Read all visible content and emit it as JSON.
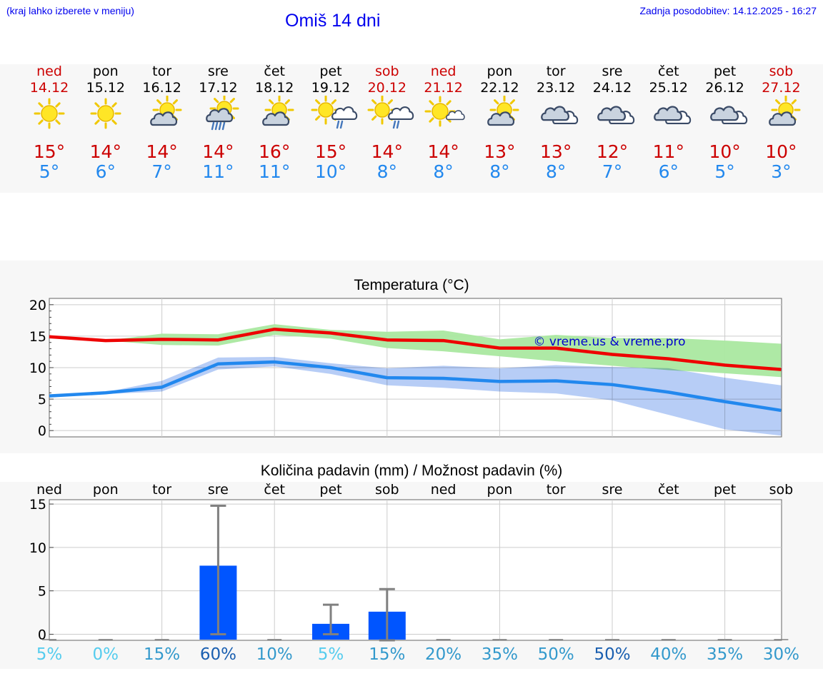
{
  "header": {
    "hint": "(kraj lahko izberete v meniju)",
    "title": "Omiš 14 dni",
    "updated": "Zadnja posodobitev: 14.12.2025 - 16:27"
  },
  "days": [
    {
      "name": "ned",
      "date": "14.12",
      "weekend": true,
      "icon": "sunny-icon",
      "max": "15°",
      "min": "5°"
    },
    {
      "name": "pon",
      "date": "15.12",
      "weekend": false,
      "icon": "sunny-icon",
      "max": "14°",
      "min": "6°"
    },
    {
      "name": "tor",
      "date": "16.12",
      "weekend": false,
      "icon": "partly-cloudy-icon",
      "max": "14°",
      "min": "7°"
    },
    {
      "name": "sre",
      "date": "17.12",
      "weekend": false,
      "icon": "sun-cloud-rain-icon",
      "max": "14°",
      "min": "11°"
    },
    {
      "name": "čet",
      "date": "18.12",
      "weekend": false,
      "icon": "partly-cloudy-icon",
      "max": "16°",
      "min": "11°"
    },
    {
      "name": "pet",
      "date": "19.12",
      "weekend": false,
      "icon": "sun-cloud-light-rain-icon",
      "max": "15°",
      "min": "10°"
    },
    {
      "name": "sob",
      "date": "20.12",
      "weekend": true,
      "icon": "sun-cloud-light-rain-icon",
      "max": "14°",
      "min": "8°"
    },
    {
      "name": "ned",
      "date": "21.12",
      "weekend": true,
      "icon": "sun-small-cloud-icon",
      "max": "14°",
      "min": "8°"
    },
    {
      "name": "pon",
      "date": "22.12",
      "weekend": false,
      "icon": "partly-cloudy-icon",
      "max": "13°",
      "min": "8°"
    },
    {
      "name": "tor",
      "date": "23.12",
      "weekend": false,
      "icon": "cloudy-icon",
      "max": "13°",
      "min": "8°"
    },
    {
      "name": "sre",
      "date": "24.12",
      "weekend": false,
      "icon": "cloudy-icon",
      "max": "12°",
      "min": "7°"
    },
    {
      "name": "čet",
      "date": "25.12",
      "weekend": false,
      "icon": "cloudy-icon",
      "max": "11°",
      "min": "6°"
    },
    {
      "name": "pet",
      "date": "26.12",
      "weekend": false,
      "icon": "cloudy-icon",
      "max": "10°",
      "min": "5°"
    },
    {
      "name": "sob",
      "date": "27.12",
      "weekend": true,
      "icon": "partly-cloudy-icon",
      "max": "10°",
      "min": "3°"
    }
  ],
  "colors": {
    "weekend": "#cc0000",
    "weekday": "#000000",
    "max_line": "#ee0000",
    "min_line": "#2288ee",
    "max_band": "#aae8a0",
    "min_band": "#aac4f4",
    "bar": "#0055ff",
    "error_bar": "#808080"
  },
  "chart_data": [
    {
      "type": "line",
      "title": "Temperatura (°C)",
      "watermark": "© vreme.us & vreme.pro",
      "ylim": [
        -1,
        21
      ],
      "yticks": [
        0,
        5,
        10,
        15,
        20
      ],
      "series": [
        {
          "name": "max",
          "values": [
            14.9,
            14.3,
            14.5,
            14.4,
            16.1,
            15.5,
            14.4,
            14.3,
            13.1,
            13.1,
            12.1,
            11.4,
            10.4,
            9.7
          ],
          "band_low": [
            14.9,
            14.3,
            13.6,
            13.5,
            15.2,
            14.6,
            13.1,
            12.6,
            11.8,
            11.0,
            10.3,
            9.6,
            9.1,
            8.5
          ],
          "band_high": [
            14.9,
            14.3,
            15.4,
            15.3,
            16.9,
            16.0,
            15.7,
            15.9,
            14.5,
            15.2,
            14.7,
            14.7,
            14.3,
            13.8
          ]
        },
        {
          "name": "min",
          "values": [
            5.5,
            6.0,
            6.9,
            10.6,
            10.9,
            10.0,
            8.4,
            8.3,
            7.8,
            7.9,
            7.3,
            6.1,
            4.6,
            3.2
          ],
          "band_low": [
            5.5,
            5.8,
            6.2,
            9.7,
            10.2,
            9.0,
            7.2,
            6.8,
            6.2,
            5.9,
            4.8,
            2.5,
            0.2,
            -0.8
          ],
          "band_high": [
            5.5,
            6.1,
            7.9,
            11.6,
            11.7,
            10.7,
            9.9,
            10.3,
            9.9,
            10.4,
            10.1,
            9.9,
            8.4,
            7.2
          ]
        }
      ]
    },
    {
      "type": "bar",
      "title": "Količina padavin (mm) / Možnost padavin (%)",
      "ylim": [
        -0.7,
        15.5
      ],
      "yticks": [
        0,
        5,
        10,
        15
      ],
      "categories": [
        "ned",
        "pon",
        "tor",
        "sre",
        "čet",
        "pet",
        "sob",
        "ned",
        "pon",
        "tor",
        "sre",
        "čet",
        "pet",
        "sob"
      ],
      "values": [
        0,
        0,
        0,
        7.9,
        0,
        1.2,
        2.6,
        0,
        0,
        0,
        0,
        0,
        0,
        0
      ],
      "err_low": [
        0,
        0,
        0,
        0,
        0,
        0,
        -0.7,
        0,
        0,
        0,
        0,
        0,
        0,
        0
      ],
      "err_high": [
        0,
        0,
        0,
        14.8,
        0,
        3.4,
        5.2,
        0,
        0,
        0,
        0,
        0,
        0,
        0
      ],
      "probability": [
        "5%",
        "0%",
        "15%",
        "60%",
        "10%",
        "5%",
        "15%",
        "20%",
        "35%",
        "50%",
        "50%",
        "40%",
        "35%",
        "30%"
      ],
      "probability_colors": [
        "#55ccee",
        "#55ccee",
        "#3399cc",
        "#1a5fb0",
        "#3399cc",
        "#55ccee",
        "#3399cc",
        "#3399cc",
        "#3399cc",
        "#3399cc",
        "#1a5fb0",
        "#3399cc",
        "#3399cc",
        "#3399cc"
      ]
    }
  ]
}
